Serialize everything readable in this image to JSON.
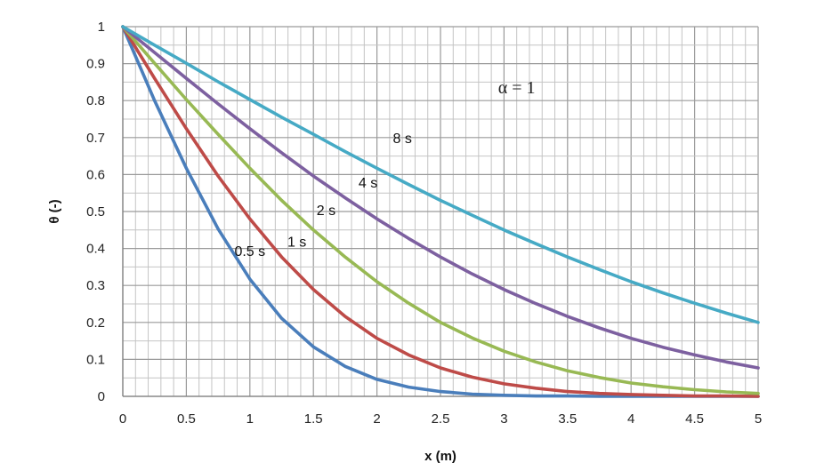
{
  "chart_data": {
    "type": "line",
    "title": "",
    "xlabel": "x (m)",
    "ylabel": "θ (-)",
    "xlim": [
      0,
      5
    ],
    "ylim": [
      0,
      1
    ],
    "x_ticks": [
      "0",
      "0.5",
      "1",
      "1.5",
      "2",
      "2.5",
      "3",
      "3.5",
      "4",
      "4.5",
      "5"
    ],
    "y_ticks": [
      "0",
      "0.1",
      "0.2",
      "0.3",
      "0.4",
      "0.5",
      "0.6",
      "0.7",
      "0.8",
      "0.9",
      "1"
    ],
    "grid": true,
    "legend": "none",
    "annotation": "α = 1",
    "x": [
      0,
      0.25,
      0.5,
      0.75,
      1,
      1.25,
      1.5,
      1.75,
      2,
      2.25,
      2.5,
      2.75,
      3,
      3.25,
      3.5,
      3.75,
      4,
      4.25,
      4.5,
      4.75,
      5
    ],
    "series": [
      {
        "name": "0.5 s",
        "color": "#4a7ebb",
        "values": [
          1,
          0.8,
          0.617,
          0.453,
          0.317,
          0.211,
          0.134,
          0.081,
          0.046,
          0.025,
          0.013,
          0.006,
          0.003,
          0.001,
          0.001,
          0,
          0,
          0,
          0,
          0,
          0
        ]
      },
      {
        "name": "1 s",
        "color": "#be4b48",
        "values": [
          1,
          0.86,
          0.724,
          0.596,
          0.48,
          0.377,
          0.289,
          0.216,
          0.157,
          0.112,
          0.077,
          0.052,
          0.034,
          0.022,
          0.013,
          0.008,
          0.005,
          0.003,
          0.001,
          0.001,
          0
        ]
      },
      {
        "name": "2 s",
        "color": "#98b954",
        "values": [
          1,
          0.901,
          0.803,
          0.709,
          0.617,
          0.53,
          0.45,
          0.377,
          0.31,
          0.252,
          0.2,
          0.158,
          0.122,
          0.093,
          0.069,
          0.051,
          0.036,
          0.026,
          0.018,
          0.012,
          0.008
        ]
      },
      {
        "name": "4 s",
        "color": "#7d60a0",
        "values": [
          1,
          0.93,
          0.86,
          0.791,
          0.724,
          0.659,
          0.596,
          0.537,
          0.48,
          0.427,
          0.377,
          0.331,
          0.289,
          0.251,
          0.216,
          0.185,
          0.157,
          0.133,
          0.112,
          0.093,
          0.077
        ]
      },
      {
        "name": "8 s",
        "color": "#46aac5",
        "values": [
          1,
          0.95,
          0.901,
          0.851,
          0.803,
          0.755,
          0.709,
          0.662,
          0.617,
          0.573,
          0.53,
          0.49,
          0.45,
          0.413,
          0.377,
          0.343,
          0.31,
          0.28,
          0.252,
          0.225,
          0.2
        ]
      }
    ],
    "curve_labels": [
      {
        "text": "0.5 s",
        "x": 1.0,
        "y": 0.38
      },
      {
        "text": "1 s",
        "x": 1.37,
        "y": 0.405
      },
      {
        "text": "2 s",
        "x": 1.6,
        "y": 0.49
      },
      {
        "text": "4 s",
        "x": 1.93,
        "y": 0.565
      },
      {
        "text": "8 s",
        "x": 2.2,
        "y": 0.685
      }
    ],
    "annotation_pos": {
      "x": 3.1,
      "y": 0.82
    }
  }
}
